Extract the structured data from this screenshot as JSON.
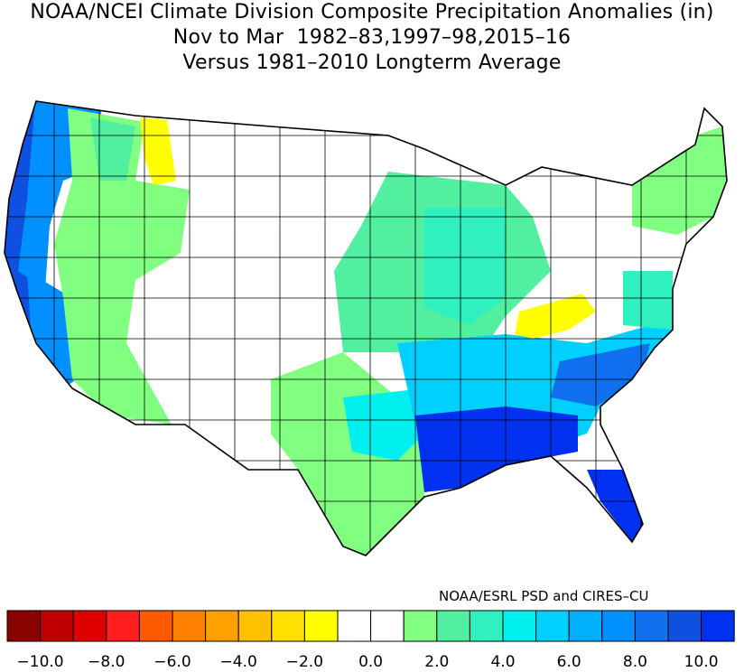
{
  "title": {
    "line1": "NOAA/NCEI Climate Division Composite Precipitation Anomalies (in)",
    "line2": "Nov to Mar  1982–83,1997–98,2015–16",
    "line3": "Versus 1981–2010 Longterm Average"
  },
  "credit": "NOAA/ESRL PSD and CIRES–CU",
  "legend": {
    "colors": [
      "#8b0000",
      "#c00000",
      "#e00000",
      "#ff1e1e",
      "#ff5a00",
      "#ff8000",
      "#ffa000",
      "#ffc000",
      "#ffe000",
      "#ffff00",
      "#ffffff",
      "#ffffff",
      "#80ff80",
      "#50f0a0",
      "#30f0c0",
      "#00f0f0",
      "#00d0ff",
      "#00b0ff",
      "#0090ff",
      "#1070f0",
      "#1050e0",
      "#0030f0"
    ],
    "tick_labels": [
      "−10.0",
      "−8.0",
      "−6.0",
      "−4.0",
      "−2.0",
      "0.0",
      "2.0",
      "4.0",
      "6.0",
      "8.0",
      "10.0"
    ]
  },
  "map": {
    "regions": [
      {
        "name": "pacific-coast",
        "color": "#1050e0"
      },
      {
        "name": "california-inland",
        "color": "#0090ff"
      },
      {
        "name": "great-basin",
        "color": "#80ff80"
      },
      {
        "name": "montana-yellow",
        "color": "#ffff00"
      },
      {
        "name": "plains-blank",
        "color": "#ffffff"
      },
      {
        "name": "midwest",
        "color": "#50f0a0"
      },
      {
        "name": "gulf-coast",
        "color": "#0030f0"
      },
      {
        "name": "southeast",
        "color": "#0090ff"
      },
      {
        "name": "kentucky-yellow",
        "color": "#ffff00"
      },
      {
        "name": "florida",
        "color": "#0030f0"
      },
      {
        "name": "texas",
        "color": "#80ff80"
      },
      {
        "name": "northeast",
        "color": "#80ff80"
      }
    ]
  }
}
